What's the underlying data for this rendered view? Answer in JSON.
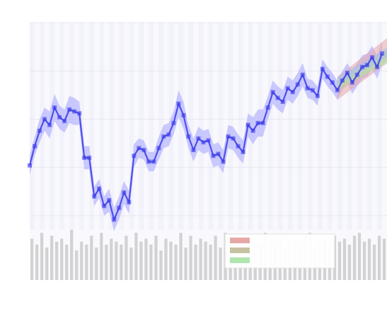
{
  "chart_data": {
    "type": "line",
    "title": "",
    "xlabel": "",
    "ylabel": "",
    "yticks": [
      "",
      "",
      "",
      "",
      ""
    ],
    "ylim": [
      0,
      100
    ],
    "xlim": [
      0,
      72
    ],
    "grid": true,
    "legend_position": "bottom-right",
    "main_series": {
      "name": "",
      "color": "#3a3ae8",
      "band_color": "#b8b8ff",
      "x": [
        0,
        1,
        2,
        3,
        4,
        5,
        6,
        7,
        8,
        9,
        10,
        11,
        12,
        13,
        14,
        15,
        16,
        17,
        18,
        19,
        20,
        21,
        22,
        23,
        24,
        25,
        26,
        27,
        28,
        29,
        30,
        31,
        32,
        33,
        34,
        35,
        36,
        37,
        38,
        39,
        40,
        41,
        42,
        43,
        44,
        45,
        46,
        47,
        48,
        49,
        50,
        51,
        52,
        53,
        54,
        55,
        56,
        57,
        58,
        59,
        60,
        61,
        62,
        63,
        64,
        65,
        66,
        67,
        68,
        69,
        70,
        71
      ],
      "y": [
        26,
        36,
        44,
        50,
        47,
        56,
        51,
        49,
        55,
        54,
        53,
        30,
        30,
        10,
        14,
        5,
        8,
        -2,
        4,
        12,
        7,
        31,
        35,
        34,
        28,
        28,
        35,
        41,
        42,
        48,
        58,
        52,
        41,
        34,
        40,
        38,
        39,
        31,
        32,
        28,
        41,
        40,
        36,
        33,
        47,
        44,
        48,
        48,
        56,
        64,
        61,
        59,
        66,
        64,
        68,
        73,
        66,
        65,
        62,
        76,
        72,
        69,
        65,
        70,
        74,
        69,
        73,
        77,
        78,
        82,
        77,
        84
      ],
      "band_half_width": [
        5,
        5,
        6,
        6,
        7,
        7,
        6,
        6,
        7,
        7,
        6,
        6,
        6,
        5,
        5,
        5,
        6,
        6,
        6,
        6,
        6,
        6,
        5,
        5,
        5,
        5,
        6,
        6,
        6,
        6,
        7,
        7,
        6,
        6,
        6,
        6,
        6,
        6,
        6,
        6,
        6,
        6,
        6,
        6,
        6,
        7,
        7,
        7,
        6,
        6,
        6,
        6,
        6,
        6,
        6,
        6,
        5,
        5,
        5,
        5,
        5,
        5,
        5,
        5,
        5,
        6,
        6,
        6,
        6,
        6,
        6,
        6
      ]
    },
    "forecast_series": [
      {
        "name": "",
        "color": "#e7a7a7",
        "x": [
          62,
          72
        ],
        "y_low": [
          60,
          79
        ],
        "y_high": [
          72,
          92
        ]
      },
      {
        "name": "",
        "color": "#c9c2a0",
        "x": [
          62,
          72
        ],
        "y_low": [
          64,
          80
        ],
        "y_high": [
          70,
          86
        ]
      },
      {
        "name": "",
        "color": "#aee6ae",
        "x": [
          62,
          72
        ],
        "y_low": [
          66,
          79
        ],
        "y_high": [
          71,
          85
        ]
      },
      {
        "name": "",
        "color": "#a9bcf0",
        "x": [
          62,
          72
        ],
        "y_low": [
          68,
          82
        ],
        "y_high": [
          72,
          87
        ]
      }
    ],
    "volume": {
      "name": "",
      "color": "#c4c4c4",
      "values": [
        70,
        60,
        80,
        55,
        75,
        65,
        70,
        60,
        85,
        50,
        65,
        60,
        75,
        55,
        80,
        60,
        70,
        65,
        60,
        75,
        55,
        80,
        65,
        70,
        60,
        75,
        50,
        70,
        65,
        60,
        80,
        55,
        75,
        60,
        70,
        65,
        60,
        75,
        55,
        80,
        65,
        60,
        70,
        75,
        55,
        65,
        60,
        80,
        70,
        60,
        75,
        55,
        65,
        70,
        60,
        75,
        80,
        55,
        65,
        70,
        60,
        75,
        65,
        70,
        60,
        75,
        80,
        65,
        70,
        60,
        75,
        70
      ]
    }
  }
}
